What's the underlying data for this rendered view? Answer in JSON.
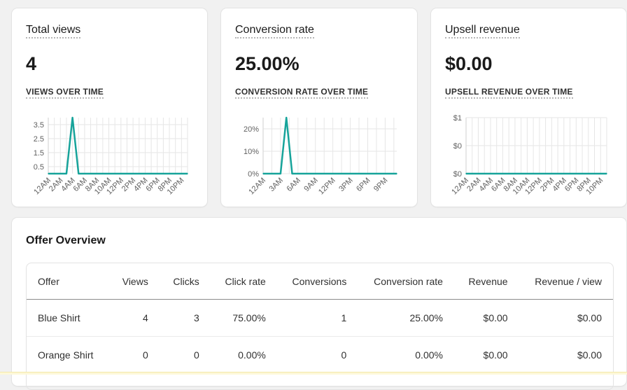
{
  "metrics": [
    {
      "title": "Total views",
      "value": "4",
      "chart_title": "VIEWS OVER TIME",
      "y_ticks": [
        "3.5",
        "2.5",
        "1.5",
        "0.5"
      ],
      "x_ticks": [
        "12AM",
        "2AM",
        "4AM",
        "6AM",
        "8AM",
        "10AM",
        "12PM",
        "2PM",
        "4PM",
        "6PM",
        "8PM",
        "10PM"
      ]
    },
    {
      "title": "Conversion rate",
      "value": "25.00%",
      "chart_title": "CONVERSION RATE OVER TIME",
      "y_ticks": [
        "20%",
        "10%",
        "0%"
      ],
      "x_ticks": [
        "12AM",
        "3AM",
        "6AM",
        "9AM",
        "12PM",
        "3PM",
        "6PM",
        "9PM"
      ]
    },
    {
      "title": "Upsell revenue",
      "value": "$0.00",
      "chart_title": "UPSELL REVENUE OVER TIME",
      "y_ticks": [
        "$1",
        "$0",
        "$0"
      ],
      "x_ticks": [
        "12AM",
        "2AM",
        "4AM",
        "6AM",
        "8AM",
        "10AM",
        "12PM",
        "2PM",
        "4PM",
        "6PM",
        "8PM",
        "10PM"
      ]
    }
  ],
  "chart_data": [
    {
      "type": "line",
      "title": "VIEWS OVER TIME",
      "x_unit": "hour of day",
      "x": [
        0,
        1,
        2,
        3,
        4,
        5,
        6,
        7,
        8,
        9,
        10,
        11,
        12,
        13,
        14,
        15,
        16,
        17,
        18,
        19,
        20,
        21,
        22,
        23
      ],
      "series": [
        {
          "values": [
            0,
            0,
            0,
            0,
            4,
            0,
            0,
            0,
            0,
            0,
            0,
            0,
            0,
            0,
            0,
            0,
            0,
            0,
            0,
            0,
            0,
            0,
            0,
            0
          ]
        }
      ],
      "ylim": [
        0,
        4
      ],
      "color": "#16a39a",
      "grid": true
    },
    {
      "type": "line",
      "title": "CONVERSION RATE OVER TIME",
      "x_unit": "hour of day",
      "x": [
        0,
        1,
        2,
        3,
        4,
        5,
        6,
        7,
        8,
        9,
        10,
        11,
        12,
        13,
        14,
        15,
        16,
        17,
        18,
        19,
        20,
        21,
        22,
        23
      ],
      "series": [
        {
          "values": [
            0,
            0,
            0,
            0,
            25,
            0,
            0,
            0,
            0,
            0,
            0,
            0,
            0,
            0,
            0,
            0,
            0,
            0,
            0,
            0,
            0,
            0,
            0,
            0
          ]
        }
      ],
      "ylim": [
        0,
        25
      ],
      "color": "#16a39a",
      "grid": true
    },
    {
      "type": "line",
      "title": "UPSELL REVENUE OVER TIME",
      "x_unit": "hour of day",
      "x": [
        0,
        1,
        2,
        3,
        4,
        5,
        6,
        7,
        8,
        9,
        10,
        11,
        12,
        13,
        14,
        15,
        16,
        17,
        18,
        19,
        20,
        21,
        22,
        23
      ],
      "series": [
        {
          "values": [
            0,
            0,
            0,
            0,
            0,
            0,
            0,
            0,
            0,
            0,
            0,
            0,
            0,
            0,
            0,
            0,
            0,
            0,
            0,
            0,
            0,
            0,
            0,
            0
          ]
        }
      ],
      "ylim": [
        0,
        1
      ],
      "color": "#16a39a",
      "grid": true
    }
  ],
  "offer_overview": {
    "title": "Offer Overview",
    "headers": [
      "Offer",
      "Views",
      "Clicks",
      "Click rate",
      "Conversions",
      "Conversion rate",
      "Revenue",
      "Revenue / view"
    ],
    "rows": [
      [
        "Blue Shirt",
        "4",
        "3",
        "75.00%",
        "1",
        "25.00%",
        "$0.00",
        "$0.00"
      ],
      [
        "Orange Shirt",
        "0",
        "0",
        "0.00%",
        "0",
        "0.00%",
        "$0.00",
        "$0.00"
      ]
    ]
  }
}
